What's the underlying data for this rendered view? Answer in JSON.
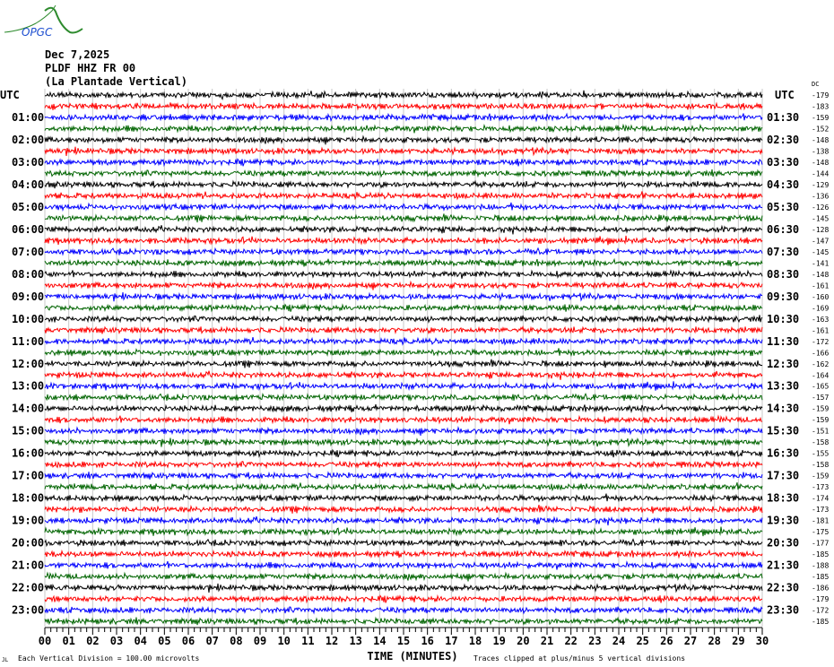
{
  "logo": {
    "text": "OPGC",
    "colors": {
      "mountain": "#2e8b2e",
      "text": "#1e4fd0"
    }
  },
  "header": {
    "date": "Dec 7,2025",
    "station": "PLDF HHZ FR 00",
    "description": "(La Plantade Vertical)"
  },
  "left_axis": {
    "title": "UTC",
    "labels": [
      "01:00",
      "02:00",
      "03:00",
      "04:00",
      "05:00",
      "06:00",
      "07:00",
      "08:00",
      "09:00",
      "10:00",
      "11:00",
      "12:00",
      "13:00",
      "14:00",
      "15:00",
      "16:00",
      "17:00",
      "18:00",
      "19:00",
      "20:00",
      "21:00",
      "22:00",
      "23:00"
    ]
  },
  "right_axis": {
    "title": "UTC",
    "corner_label": "DC",
    "labels": [
      "01:30",
      "02:30",
      "03:30",
      "04:30",
      "05:30",
      "06:30",
      "07:30",
      "08:30",
      "09:30",
      "10:30",
      "11:30",
      "12:30",
      "13:30",
      "14:30",
      "15:30",
      "16:30",
      "17:30",
      "18:30",
      "19:30",
      "20:30",
      "21:30",
      "22:30",
      "23:30"
    ],
    "offsets": [
      "-179",
      "-183",
      "-159",
      "-152",
      "-148",
      "-138",
      "-148",
      "-144",
      "-129",
      "-136",
      "-126",
      "-145",
      "-128",
      "-147",
      "-145",
      "-141",
      "-148",
      "-161",
      "-160",
      "-169",
      "-163",
      "-161",
      "-172",
      "-166",
      "-162",
      "-164",
      "-165",
      "-157",
      "-159",
      "-159",
      "-151",
      "-158",
      "-155",
      "-158",
      "-159",
      "-173",
      "-174",
      "-173",
      "-181",
      "-175",
      "-177",
      "-185",
      "-188",
      "-185",
      "-186",
      "-179",
      "-172",
      "-185"
    ]
  },
  "footer": {
    "corner_mark": "JL",
    "scale_note": "Each Vertical Division =  100.00 microvolts",
    "clip_note": "Traces clipped at plus/minus 5 vertical divisions"
  },
  "chart_data": {
    "type": "line",
    "xlabel": "TIME (MINUTES)",
    "xlim": [
      0,
      30
    ],
    "x_ticks": [
      "00",
      "01",
      "02",
      "03",
      "04",
      "05",
      "06",
      "07",
      "08",
      "09",
      "10",
      "11",
      "12",
      "13",
      "14",
      "15",
      "16",
      "17",
      "18",
      "19",
      "20",
      "21",
      "22",
      "23",
      "24",
      "25",
      "26",
      "27",
      "28",
      "29",
      "30"
    ],
    "trace_count": 48,
    "trace_minutes": 30,
    "trace_colors": [
      "#000000",
      "#ff0000",
      "#0000ff",
      "#006400"
    ],
    "grid": true,
    "grid_color": "#c8c8c8"
  }
}
